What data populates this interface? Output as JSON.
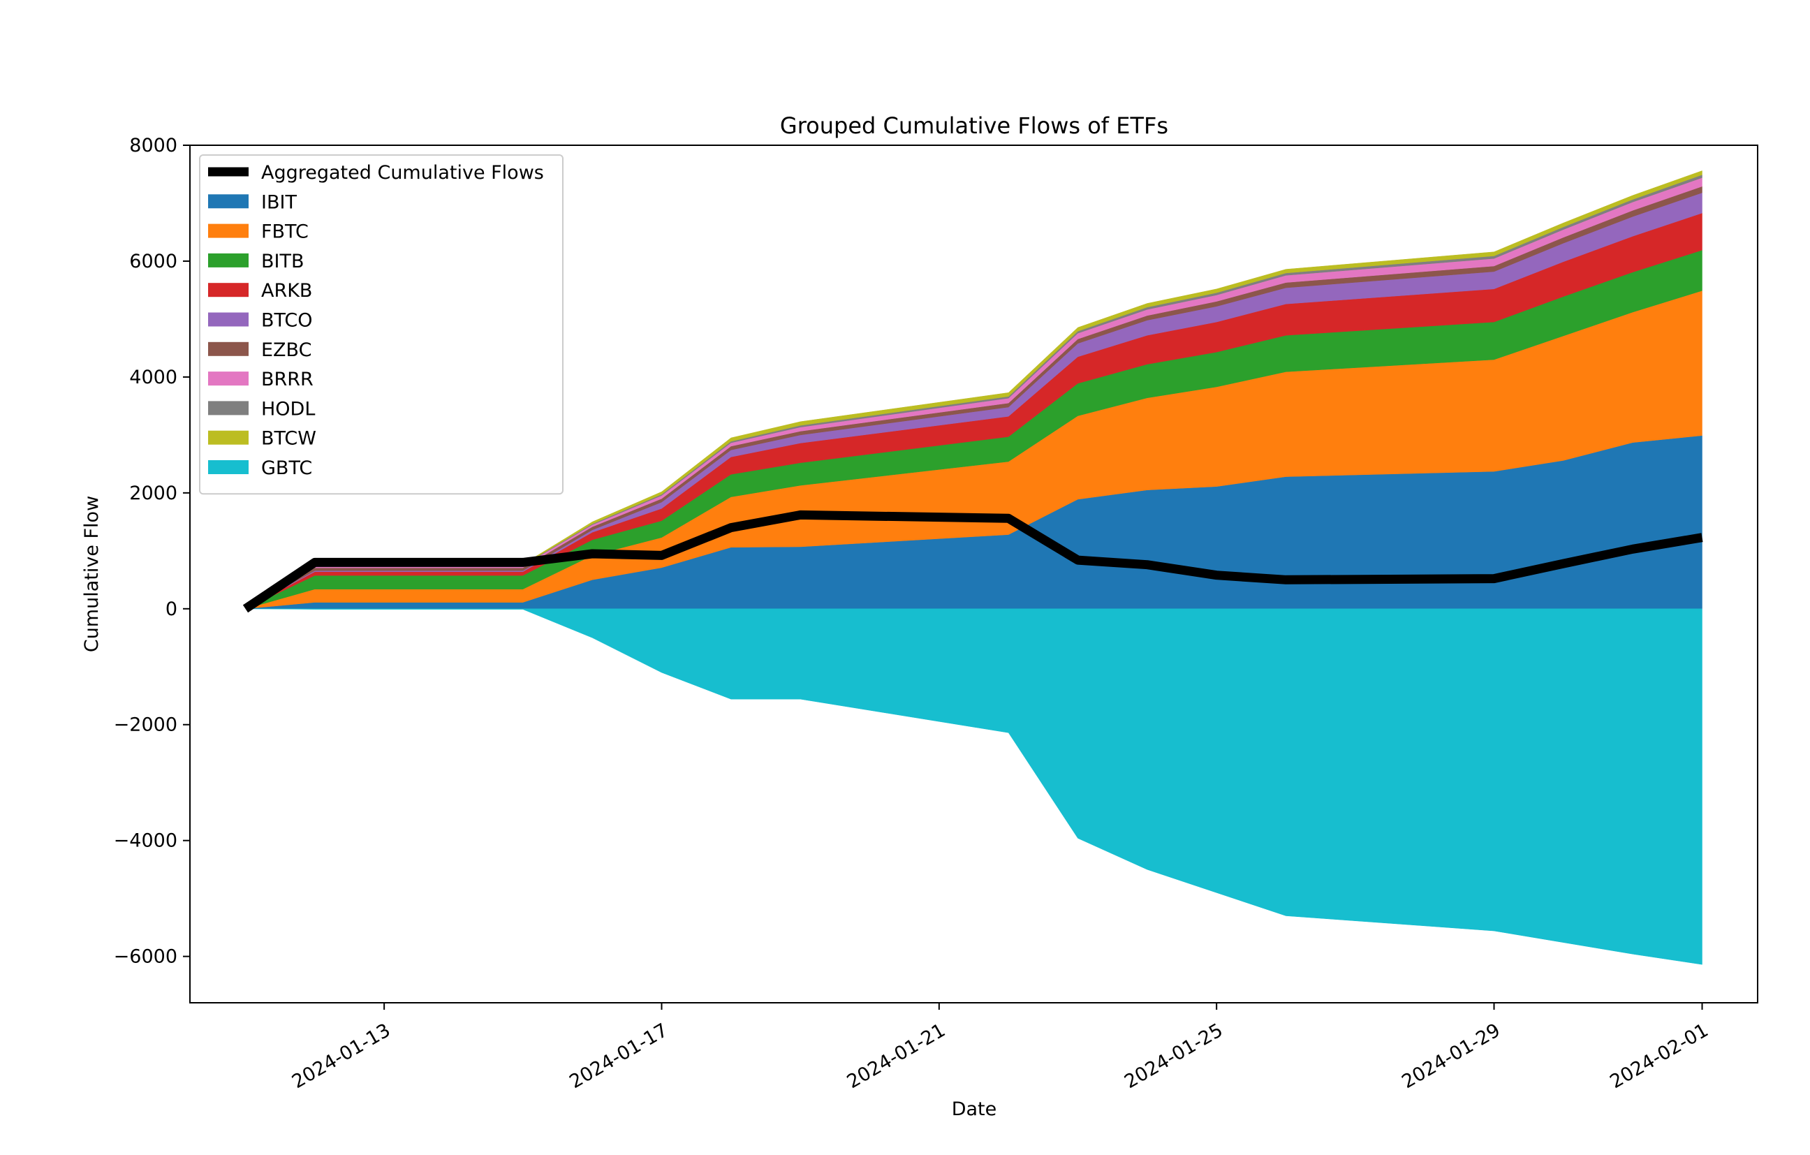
{
  "chart_data": {
    "type": "area",
    "title": "Grouped Cumulative Flows of ETFs",
    "xlabel": "Date",
    "ylabel": "Cumulative Flow",
    "x_tick_labels": [
      "2024-01-13",
      "2024-01-17",
      "2024-01-21",
      "2024-01-25",
      "2024-01-29",
      "2024-02-01"
    ],
    "y_tick_labels": [
      "−6000",
      "−4000",
      "−2000",
      "0",
      "2000",
      "4000",
      "6000",
      "8000"
    ],
    "x_range": [
      "2024-01-10",
      "2024-02-02"
    ],
    "ylim": [
      -6800,
      8000
    ],
    "grid": false,
    "legend_position": "top-left",
    "x": [
      "2024-01-11",
      "2024-01-12",
      "2024-01-15",
      "2024-01-16",
      "2024-01-17",
      "2024-01-18",
      "2024-01-19",
      "2024-01-22",
      "2024-01-23",
      "2024-01-24",
      "2024-01-25",
      "2024-01-26",
      "2024-01-29",
      "2024-01-30",
      "2024-01-31",
      "2024-02-01"
    ],
    "stacked_positive": [
      {
        "name": "IBIT",
        "color": "#1f77b4",
        "values": [
          0,
          111,
          111,
          500,
          710,
          1060,
          1070,
          1280,
          1890,
          2050,
          2110,
          2280,
          2370,
          2560,
          2870,
          2990
        ]
      },
      {
        "name": "FBTC",
        "color": "#ff7f0e",
        "values": [
          0,
          227,
          227,
          420,
          520,
          870,
          1060,
          1260,
          1440,
          1590,
          1720,
          1810,
          1930,
          2150,
          2250,
          2500
        ]
      },
      {
        "name": "BITB",
        "color": "#2ca02c",
        "values": [
          0,
          237,
          237,
          270,
          290,
          390,
          390,
          430,
          560,
          580,
          600,
          630,
          650,
          680,
          690,
          700
        ]
      },
      {
        "name": "ARKB",
        "color": "#d62728",
        "values": [
          0,
          65,
          65,
          130,
          210,
          300,
          340,
          350,
          460,
          500,
          520,
          540,
          570,
          600,
          620,
          640
        ]
      },
      {
        "name": "BTCO",
        "color": "#9467bd",
        "values": [
          0,
          17,
          17,
          40,
          110,
          120,
          140,
          160,
          230,
          260,
          270,
          280,
          300,
          320,
          340,
          350
        ]
      },
      {
        "name": "EZBC",
        "color": "#8c564b",
        "values": [
          0,
          50,
          50,
          55,
          60,
          65,
          65,
          70,
          75,
          80,
          85,
          90,
          95,
          100,
          105,
          110
        ]
      },
      {
        "name": "BRRR",
        "color": "#e377c2",
        "values": [
          0,
          35,
          35,
          35,
          55,
          60,
          70,
          85,
          100,
          105,
          110,
          125,
          130,
          135,
          145,
          150
        ]
      },
      {
        "name": "HODL",
        "color": "#7f7f7f",
        "values": [
          0,
          11,
          11,
          15,
          20,
          25,
          30,
          30,
          35,
          40,
          40,
          40,
          45,
          45,
          45,
          50
        ]
      },
      {
        "name": "BTCW",
        "color": "#bcbd22",
        "values": [
          0,
          15,
          15,
          35,
          45,
          60,
          65,
          65,
          65,
          65,
          65,
          65,
          70,
          70,
          70,
          70
        ]
      }
    ],
    "negative_series": {
      "name": "GBTC",
      "color": "#17becf",
      "values": [
        0,
        -10,
        -10,
        -500,
        -1100,
        -1560,
        -1560,
        -2140,
        -3960,
        -4500,
        -4900,
        -5300,
        -5560,
        -5760,
        -5960,
        -6140
      ]
    },
    "line_series": {
      "name": "Aggregated Cumulative Flows",
      "color": "#000000",
      "values": [
        0,
        800,
        800,
        950,
        920,
        1400,
        1620,
        1560,
        840,
        760,
        580,
        500,
        520,
        780,
        1030,
        1230
      ]
    }
  }
}
